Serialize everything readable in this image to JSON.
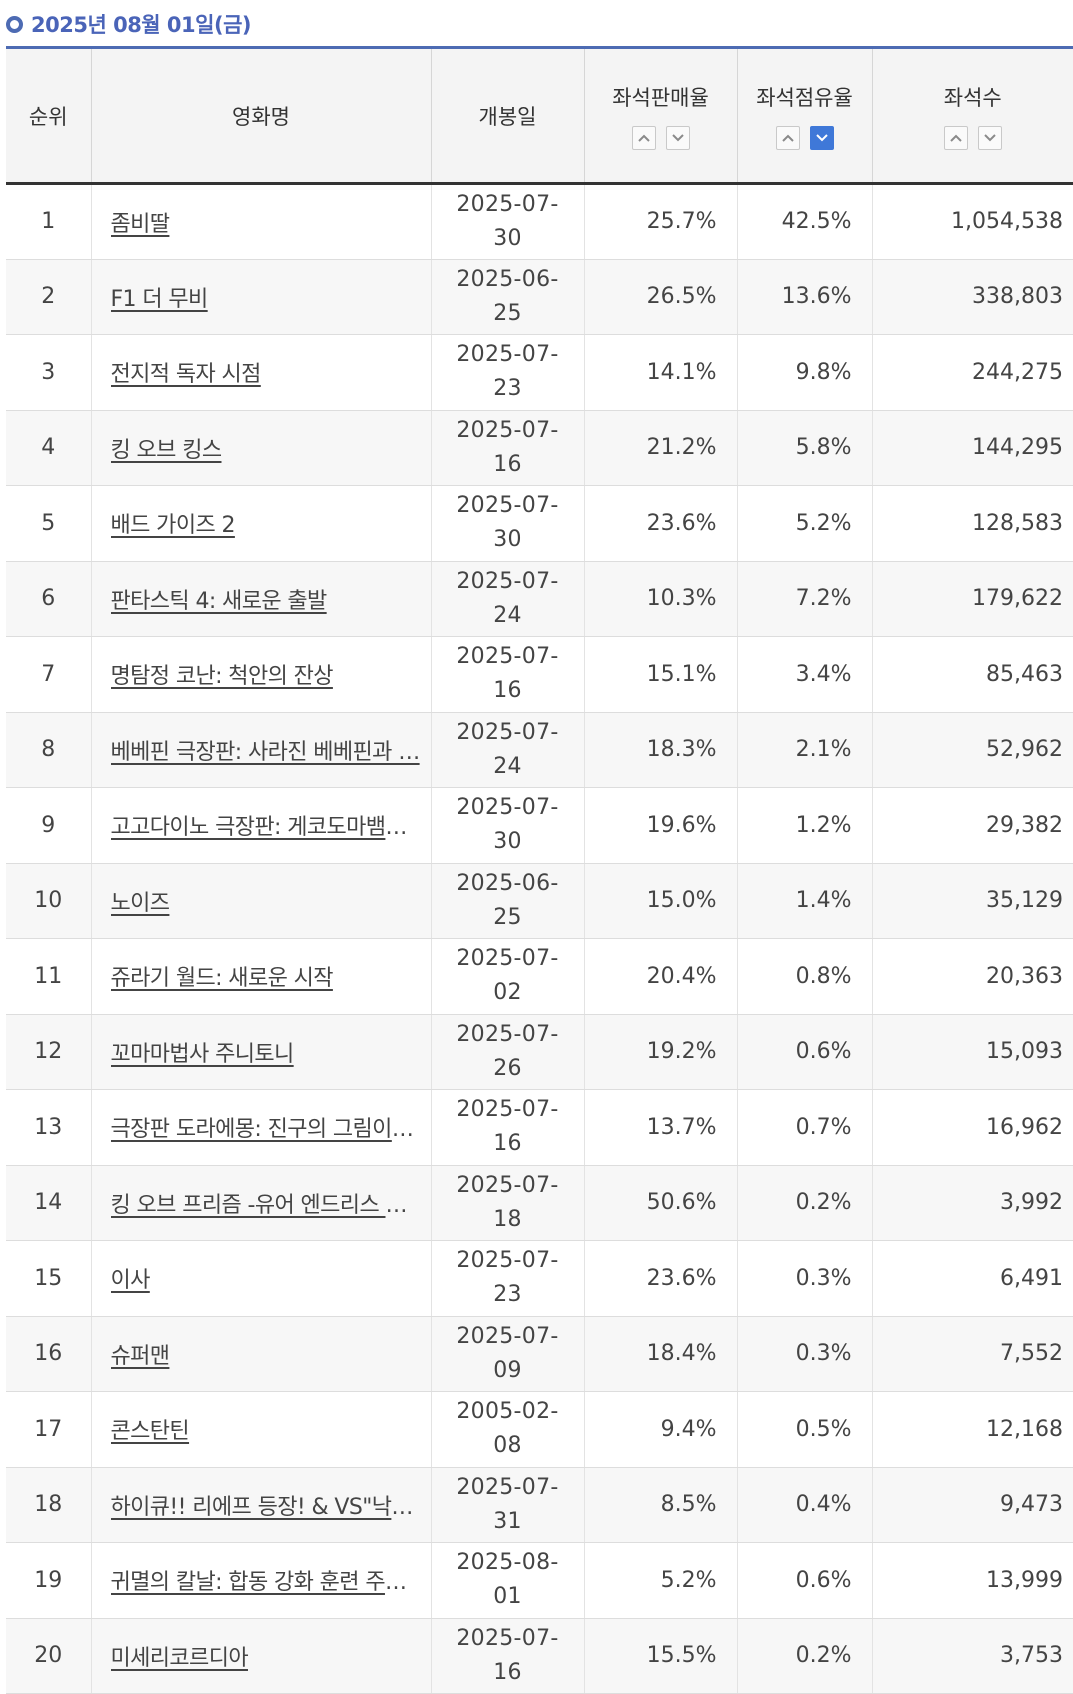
{
  "header": {
    "date": "2025년 08월 01일(금)"
  },
  "columns": {
    "rank": "순위",
    "title": "영화명",
    "release": "개봉일",
    "sales_rate": "좌석판매율",
    "share": "좌석점유율",
    "seats": "좌석수"
  },
  "rows": [
    {
      "rank": "1",
      "title": "좀비딸",
      "release": "2025-07-30",
      "sales_rate": "25.7%",
      "share": "42.5%",
      "seats": "1,054,538"
    },
    {
      "rank": "2",
      "title": "F1 더 무비",
      "release": "2025-06-25",
      "sales_rate": "26.5%",
      "share": "13.6%",
      "seats": "338,803"
    },
    {
      "rank": "3",
      "title": "전지적 독자 시점",
      "release": "2025-07-23",
      "sales_rate": "14.1%",
      "share": "9.8%",
      "seats": "244,275"
    },
    {
      "rank": "4",
      "title": "킹 오브 킹스",
      "release": "2025-07-16",
      "sales_rate": "21.2%",
      "share": "5.8%",
      "seats": "144,295"
    },
    {
      "rank": "5",
      "title": "배드 가이즈 2",
      "release": "2025-07-30",
      "sales_rate": "23.6%",
      "share": "5.2%",
      "seats": "128,583"
    },
    {
      "rank": "6",
      "title": "판타스틱 4: 새로운 출발",
      "release": "2025-07-24",
      "sales_rate": "10.3%",
      "share": "7.2%",
      "seats": "179,622"
    },
    {
      "rank": "7",
      "title": "명탐정 코난: 척안의 잔상",
      "release": "2025-07-16",
      "sales_rate": "15.1%",
      "share": "3.4%",
      "seats": "85,463"
    },
    {
      "rank": "8",
      "title": "베베핀 극장판: 사라진 베베핀과 …",
      "release": "2025-07-24",
      "sales_rate": "18.3%",
      "share": "2.1%",
      "seats": "52,962"
    },
    {
      "rank": "9",
      "title": "고고다이노 극장판: 게코도마뱀의 꿈",
      "release": "2025-07-30",
      "sales_rate": "19.6%",
      "share": "1.2%",
      "seats": "29,382"
    },
    {
      "rank": "10",
      "title": "노이즈",
      "release": "2025-06-25",
      "sales_rate": "15.0%",
      "share": "1.4%",
      "seats": "35,129"
    },
    {
      "rank": "11",
      "title": "쥬라기 월드: 새로운 시작",
      "release": "2025-07-02",
      "sales_rate": "20.4%",
      "share": "0.8%",
      "seats": "20,363"
    },
    {
      "rank": "12",
      "title": "꼬마마법사 주니토니",
      "release": "2025-07-26",
      "sales_rate": "19.2%",
      "share": "0.6%",
      "seats": "15,093"
    },
    {
      "rank": "13",
      "title": "극장판 도라에몽: 진구의 그림이야기",
      "release": "2025-07-16",
      "sales_rate": "13.7%",
      "share": "0.7%",
      "seats": "16,962"
    },
    {
      "rank": "14",
      "title": "킹 오브 프리즘 -유어 엔드리스 콜-…",
      "release": "2025-07-18",
      "sales_rate": "50.6%",
      "share": "0.2%",
      "seats": "3,992"
    },
    {
      "rank": "15",
      "title": "이사",
      "release": "2025-07-23",
      "sales_rate": "23.6%",
      "share": "0.3%",
      "seats": "6,491"
    },
    {
      "rank": "16",
      "title": "슈퍼맨",
      "release": "2025-07-09",
      "sales_rate": "18.4%",
      "share": "0.3%",
      "seats": "7,552"
    },
    {
      "rank": "17",
      "title": "콘스탄틴",
      "release": "2005-02-08",
      "sales_rate": "9.4%",
      "share": "0.5%",
      "seats": "12,168"
    },
    {
      "rank": "18",
      "title": "하이큐!! 리에프 등장! & VS\"낙제…",
      "release": "2025-07-31",
      "sales_rate": "8.5%",
      "share": "0.4%",
      "seats": "9,473"
    },
    {
      "rank": "19",
      "title": "귀멸의 칼날: 합동 강화 훈련 주집…",
      "release": "2025-08-01",
      "sales_rate": "5.2%",
      "share": "0.6%",
      "seats": "13,999"
    },
    {
      "rank": "20",
      "title": "미세리코르디아",
      "release": "2025-07-16",
      "sales_rate": "15.5%",
      "share": "0.2%",
      "seats": "3,753"
    }
  ],
  "sort": {
    "active_column": "share",
    "active_direction": "desc"
  },
  "colors": {
    "accent": "#4a64b8",
    "active_sort": "#3f78d8"
  }
}
